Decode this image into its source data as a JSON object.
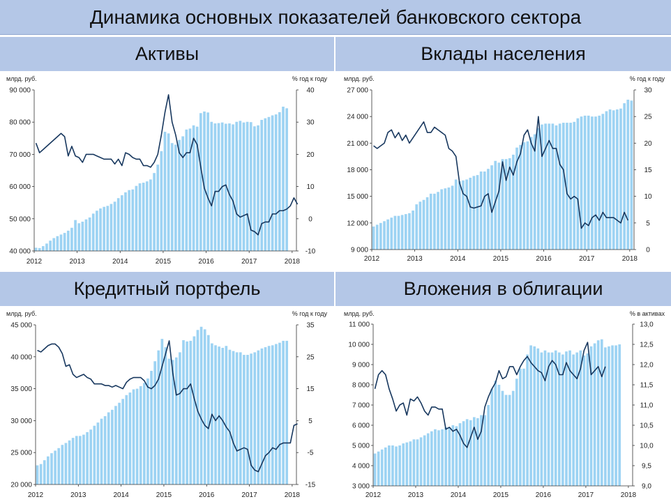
{
  "page_title": "Динамика основных показателей банковского сектора",
  "colors": {
    "header_bg": "#b4c7e7",
    "bar": "#9dd3f3",
    "line": "#17375e"
  },
  "chart_data": [
    {
      "type": "bar",
      "title": "Активы",
      "ylabel_left": "млрд. руб.",
      "ylabel_right": "% год к году",
      "x_ticks": [
        "2012",
        "2013",
        "2014",
        "2015",
        "2016",
        "2017",
        "2018"
      ],
      "y_left": {
        "min": 40000,
        "max": 90000,
        "ticks": [
          "40 000",
          "50 000",
          "60 000",
          "70 000",
          "80 000",
          "90 000"
        ]
      },
      "y_right": {
        "min": -10,
        "max": 40,
        "ticks": [
          "-10",
          "0",
          "10",
          "20",
          "30",
          "40"
        ]
      },
      "series": [
        {
          "kind": "bar",
          "axis": "left",
          "start": 2012.0,
          "step": 0.08333,
          "values": [
            41000,
            40900,
            41500,
            42300,
            43200,
            44000,
            44600,
            45100,
            45600,
            46300,
            47200,
            49600,
            48600,
            49100,
            49800,
            50400,
            51600,
            52500,
            53200,
            53700,
            54000,
            54600,
            55300,
            56400,
            57300,
            58200,
            58900,
            59100,
            60200,
            61000,
            61200,
            61600,
            62200,
            64200,
            66800,
            71000,
            77000,
            76500,
            73500,
            73000,
            74500,
            75600,
            77700,
            78000,
            79000,
            78600,
            82800,
            83300,
            83000,
            80100,
            79600,
            79700,
            79900,
            79500,
            79600,
            79300,
            80100,
            80400,
            79900,
            80100,
            80000,
            78700,
            79000,
            80700,
            81200,
            81600,
            82100,
            82400,
            83100,
            84800,
            84300
          ]
        },
        {
          "kind": "line",
          "axis": "right",
          "start": 2012.0,
          "step": 0.08333,
          "values": [
            23.5,
            20.5,
            21.5,
            22.5,
            23.5,
            24.5,
            25.5,
            26.5,
            25.5,
            19.5,
            22.5,
            19.5,
            19.0,
            17.5,
            20.0,
            20.0,
            20.0,
            19.5,
            19.0,
            18.5,
            18.5,
            18.5,
            17.0,
            18.5,
            16.5,
            20.5,
            20.0,
            19.0,
            18.5,
            18.5,
            16.5,
            16.5,
            16.0,
            17.5,
            20.0,
            26.0,
            33.0,
            38.5,
            30.0,
            26.0,
            20.5,
            19.0,
            20.5,
            20.5,
            25.0,
            23.0,
            16.0,
            9.5,
            6.5,
            4.0,
            8.5,
            8.5,
            10.0,
            10.5,
            7.5,
            5.5,
            1.5,
            0.5,
            1.0,
            1.5,
            -3.5,
            -4.0,
            -5.0,
            -1.5,
            -1.0,
            -1.0,
            1.5,
            1.5,
            2.5,
            2.5,
            3.0,
            4.0,
            6.5,
            4.5
          ]
        }
      ]
    },
    {
      "type": "bar",
      "title": "Вклады населения",
      "ylabel_left": "млрд. руб.",
      "ylabel_right": "% год к году",
      "x_ticks": [
        "2012",
        "2013",
        "2014",
        "2015",
        "2016",
        "2017",
        "2018"
      ],
      "y_left": {
        "min": 9000,
        "max": 27000,
        "ticks": [
          "9 000",
          "12 000",
          "15 000",
          "18 000",
          "21 000",
          "24 000",
          "27 000"
        ]
      },
      "y_right": {
        "min": 0,
        "max": 30,
        "ticks": [
          "0",
          "5",
          "10",
          "15",
          "20",
          "25",
          "30"
        ]
      },
      "series": [
        {
          "kind": "bar",
          "axis": "left",
          "start": 2012.0,
          "step": 0.08333,
          "values": [
            11600,
            11800,
            12000,
            12200,
            12400,
            12600,
            12800,
            12800,
            12900,
            13000,
            13100,
            13400,
            14100,
            14400,
            14600,
            14900,
            15300,
            15300,
            15500,
            15800,
            15900,
            16000,
            16200,
            16900,
            16700,
            16800,
            16900,
            17100,
            17300,
            17400,
            17800,
            17800,
            18100,
            18500,
            19000,
            18800,
            19200,
            19200,
            19300,
            19700,
            20500,
            20800,
            21100,
            21200,
            21700,
            22000,
            22700,
            23100,
            23200,
            23200,
            23200,
            23000,
            23200,
            23300,
            23300,
            23300,
            23400,
            23800,
            24000,
            24100,
            24100,
            24000,
            24000,
            24100,
            24300,
            24600,
            24800,
            24700,
            24800,
            24900,
            25500,
            25900,
            25800
          ]
        },
        {
          "kind": "line",
          "axis": "right",
          "start": 2012.0,
          "step": 0.08333,
          "values": [
            19.5,
            19.0,
            19.5,
            20.0,
            22.0,
            22.5,
            21.0,
            22.0,
            20.5,
            21.5,
            20.0,
            21.0,
            22.0,
            23.0,
            24.0,
            22.0,
            22.0,
            23.0,
            22.5,
            22.0,
            21.5,
            19.0,
            18.5,
            17.5,
            12.5,
            10.5,
            10.0,
            8.0,
            7.8,
            8.0,
            8.2,
            10.0,
            10.5,
            7.0,
            9.0,
            11.0,
            16.5,
            13.0,
            15.5,
            14.0,
            16.5,
            18.0,
            21.5,
            22.5,
            20.0,
            18.5,
            25.0,
            17.5,
            19.0,
            20.5,
            19.0,
            19.0,
            16.0,
            15.0,
            10.5,
            9.5,
            10.0,
            9.5,
            4.0,
            5.0,
            4.5,
            6.0,
            6.5,
            5.5,
            7.0,
            6.0,
            6.0,
            6.0,
            5.5,
            5.0,
            7.0,
            5.5
          ]
        }
      ]
    },
    {
      "type": "bar",
      "title": "Кредитный портфель",
      "ylabel_left": "млрд. руб.",
      "ylabel_right": "% год к году",
      "x_ticks": [
        "2012",
        "2013",
        "2014",
        "2015",
        "2016",
        "2017",
        "2018"
      ],
      "y_left": {
        "min": 20000,
        "max": 45000,
        "ticks": [
          "20 000",
          "25 000",
          "30 000",
          "35 000",
          "40 000",
          "45 000"
        ]
      },
      "y_right": {
        "min": -15,
        "max": 35,
        "ticks": [
          "-15",
          "-5",
          "5",
          "15",
          "25",
          "35"
        ]
      },
      "series": [
        {
          "kind": "bar",
          "axis": "left",
          "start": 2012.0,
          "step": 0.08333,
          "values": [
            23000,
            23200,
            23800,
            24400,
            24900,
            25300,
            25700,
            26200,
            26500,
            26900,
            27300,
            27600,
            27600,
            27800,
            28200,
            28600,
            29200,
            29700,
            30300,
            30700,
            31300,
            31700,
            32300,
            32800,
            33400,
            34000,
            34400,
            34900,
            35000,
            35400,
            35900,
            36600,
            37800,
            39300,
            41000,
            42800,
            41500,
            39700,
            39500,
            39900,
            40700,
            42600,
            42400,
            42500,
            43200,
            44200,
            44700,
            44300,
            43400,
            42100,
            41800,
            41600,
            41400,
            41700,
            41100,
            40900,
            40700,
            40700,
            40300,
            40300,
            40500,
            40700,
            41000,
            41300,
            41500,
            41700,
            41800,
            42000,
            42200,
            42500,
            42500
          ]
        },
        {
          "kind": "line",
          "axis": "right",
          "start": 2012.0,
          "step": 0.08333,
          "values": [
            27.0,
            26.5,
            27.5,
            28.5,
            29.0,
            29.0,
            28.0,
            26.0,
            22.0,
            22.5,
            19.5,
            18.5,
            19.0,
            19.5,
            18.5,
            18.0,
            16.5,
            16.5,
            16.5,
            16.0,
            16.0,
            15.5,
            16.0,
            15.5,
            15.0,
            17.0,
            18.0,
            18.5,
            18.5,
            18.5,
            17.5,
            15.5,
            15.0,
            16.0,
            18.0,
            22.0,
            26.0,
            30.0,
            20.0,
            13.0,
            13.5,
            15.0,
            15.0,
            16.5,
            12.0,
            8.0,
            5.5,
            3.5,
            2.5,
            7.0,
            5.0,
            6.5,
            5.0,
            3.0,
            1.5,
            -2.0,
            -4.5,
            -4.0,
            -3.5,
            -4.0,
            -9.0,
            -10.5,
            -11.0,
            -8.5,
            -6.0,
            -5.0,
            -3.5,
            -4.0,
            -2.5,
            -2.0,
            -2.0,
            -2.0,
            3.5,
            4.0
          ]
        }
      ]
    },
    {
      "type": "bar",
      "title": "Вложения в облигации",
      "ylabel_left": "млрд. руб.",
      "ylabel_right": "% в активах",
      "x_ticks": [
        "2012",
        "2013",
        "2014",
        "2015",
        "2016",
        "2017",
        "2018"
      ],
      "y_left": {
        "min": 3000,
        "max": 11000,
        "ticks": [
          "3 000",
          "4 000",
          "5 000",
          "6 000",
          "7 000",
          "8 000",
          "9 000",
          "10 000",
          "11 000"
        ]
      },
      "y_right": {
        "min": 9.0,
        "max": 13.0,
        "ticks": [
          "9,0",
          "9,5",
          "10,0",
          "10,5",
          "11,0",
          "11,5",
          "12,0",
          "12,5",
          "13,0"
        ]
      },
      "series": [
        {
          "kind": "bar",
          "axis": "left",
          "start": 2012.0,
          "step": 0.08333,
          "values": [
            4600,
            4700,
            4800,
            4900,
            5000,
            5000,
            4950,
            5000,
            5100,
            5150,
            5200,
            5300,
            5300,
            5400,
            5500,
            5600,
            5700,
            5800,
            5750,
            5800,
            5900,
            5900,
            6000,
            5950,
            6100,
            6200,
            6300,
            6250,
            6400,
            6350,
            6500,
            6500,
            7000,
            7800,
            8200,
            8000,
            7700,
            7500,
            7500,
            7700,
            8300,
            8800,
            8800,
            9500,
            9950,
            9900,
            9800,
            9600,
            9700,
            9600,
            9600,
            9700,
            9600,
            9500,
            9650,
            9700,
            9500,
            9600,
            9700,
            9450,
            9550,
            9900,
            10050,
            10200,
            10250,
            9850,
            9900,
            9950,
            9950,
            10000
          ]
        },
        {
          "kind": "line",
          "axis": "right",
          "start": 2012.0,
          "step": 0.08333,
          "values": [
            11.4,
            11.75,
            11.85,
            11.75,
            11.4,
            11.15,
            10.85,
            11.0,
            11.05,
            10.75,
            11.15,
            11.1,
            11.2,
            11.05,
            10.85,
            10.75,
            10.95,
            10.95,
            10.9,
            10.9,
            10.4,
            10.45,
            10.35,
            10.4,
            10.25,
            10.05,
            9.95,
            10.2,
            10.45,
            10.15,
            10.35,
            10.95,
            11.2,
            11.4,
            11.55,
            11.85,
            11.65,
            11.7,
            11.95,
            11.95,
            11.75,
            11.95,
            12.1,
            12.2,
            12.05,
            11.95,
            11.85,
            11.8,
            11.6,
            11.95,
            12.1,
            12.0,
            11.75,
            11.75,
            12.05,
            11.85,
            11.75,
            11.65,
            11.9,
            12.35,
            12.55,
            11.75,
            11.85,
            11.95,
            11.7,
            11.95
          ]
        }
      ]
    }
  ]
}
